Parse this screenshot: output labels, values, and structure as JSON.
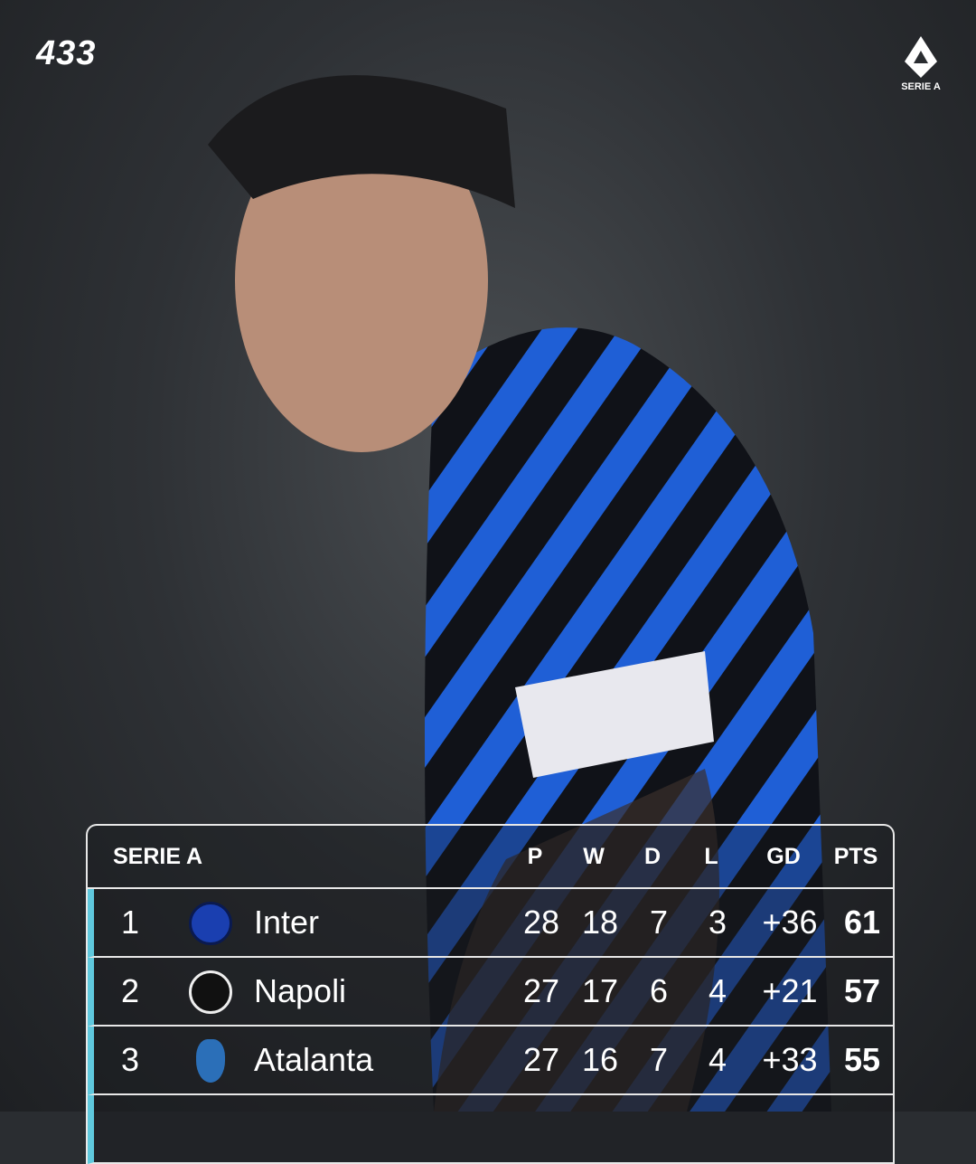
{
  "brand": {
    "logo": "433",
    "league_logo_text": "SERIE A"
  },
  "colors": {
    "accent": "#5fc8dd",
    "jersey_blue": "#1f5fd6"
  },
  "table": {
    "title": "SERIE A",
    "columns": [
      "P",
      "W",
      "D",
      "L",
      "GD",
      "PTS"
    ],
    "rows": [
      {
        "rank": "1",
        "team": "Inter",
        "crest": "inter-crest-icon",
        "p": "28",
        "w": "18",
        "d": "7",
        "l": "3",
        "gd": "+36",
        "pts": "61"
      },
      {
        "rank": "2",
        "team": "Napoli",
        "crest": "napoli-crest-icon",
        "p": "27",
        "w": "17",
        "d": "6",
        "l": "4",
        "gd": "+21",
        "pts": "57"
      },
      {
        "rank": "3",
        "team": "Atalanta",
        "crest": "atalanta-crest-icon",
        "p": "27",
        "w": "16",
        "d": "7",
        "l": "4",
        "gd": "+33",
        "pts": "55"
      }
    ]
  }
}
